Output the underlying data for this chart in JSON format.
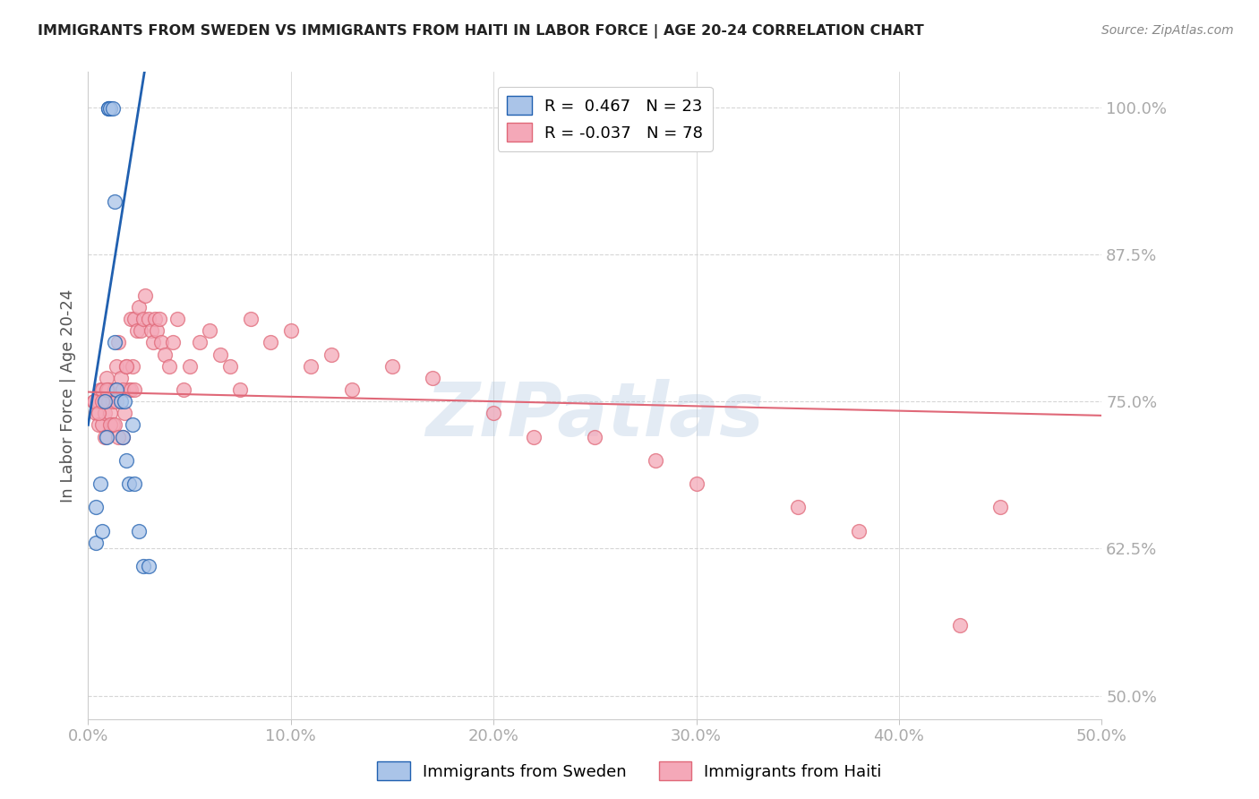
{
  "title": "IMMIGRANTS FROM SWEDEN VS IMMIGRANTS FROM HAITI IN LABOR FORCE | AGE 20-24 CORRELATION CHART",
  "source": "Source: ZipAtlas.com",
  "ylabel": "In Labor Force | Age 20-24",
  "xlim": [
    0.0,
    0.5
  ],
  "ylim": [
    0.48,
    1.03
  ],
  "yticks": [
    0.5,
    0.625,
    0.75,
    0.875,
    1.0
  ],
  "ytick_labels": [
    "50.0%",
    "62.5%",
    "75.0%",
    "87.5%",
    "100.0%"
  ],
  "xticks": [
    0.0,
    0.1,
    0.2,
    0.3,
    0.4,
    0.5
  ],
  "xtick_labels": [
    "0.0%",
    "10.0%",
    "20.0%",
    "30.0%",
    "40.0%",
    "50.0%"
  ],
  "sweden_R": 0.467,
  "sweden_N": 23,
  "haiti_R": -0.037,
  "haiti_N": 78,
  "sweden_color": "#aac4e8",
  "haiti_color": "#f4a8b8",
  "sweden_line_color": "#2060b0",
  "haiti_line_color": "#e06878",
  "watermark": "ZIPatlas",
  "sweden_x": [
    0.004,
    0.008,
    0.009,
    0.01,
    0.01,
    0.011,
    0.012,
    0.013,
    0.013,
    0.014,
    0.016,
    0.017,
    0.018,
    0.019,
    0.02,
    0.022,
    0.023,
    0.025,
    0.027,
    0.03,
    0.004,
    0.006,
    0.007
  ],
  "sweden_y": [
    0.63,
    0.75,
    0.72,
    0.999,
    0.999,
    0.999,
    0.999,
    0.92,
    0.8,
    0.76,
    0.75,
    0.72,
    0.75,
    0.7,
    0.68,
    0.73,
    0.68,
    0.64,
    0.61,
    0.61,
    0.66,
    0.68,
    0.64
  ],
  "haiti_x": [
    0.003,
    0.004,
    0.005,
    0.005,
    0.006,
    0.007,
    0.007,
    0.008,
    0.008,
    0.009,
    0.01,
    0.01,
    0.011,
    0.012,
    0.012,
    0.013,
    0.014,
    0.014,
    0.015,
    0.016,
    0.017,
    0.018,
    0.019,
    0.02,
    0.021,
    0.022,
    0.023,
    0.024,
    0.025,
    0.026,
    0.027,
    0.028,
    0.03,
    0.031,
    0.032,
    0.033,
    0.034,
    0.035,
    0.036,
    0.038,
    0.04,
    0.042,
    0.044,
    0.047,
    0.05,
    0.055,
    0.06,
    0.065,
    0.07,
    0.075,
    0.08,
    0.09,
    0.1,
    0.11,
    0.12,
    0.13,
    0.15,
    0.17,
    0.2,
    0.22,
    0.25,
    0.28,
    0.3,
    0.35,
    0.38,
    0.43,
    0.45,
    0.003,
    0.005,
    0.007,
    0.009,
    0.011,
    0.013,
    0.015,
    0.017,
    0.019,
    0.021,
    0.023
  ],
  "haiti_y": [
    0.75,
    0.74,
    0.73,
    0.75,
    0.76,
    0.76,
    0.73,
    0.72,
    0.74,
    0.77,
    0.75,
    0.76,
    0.74,
    0.75,
    0.73,
    0.76,
    0.75,
    0.78,
    0.8,
    0.77,
    0.72,
    0.74,
    0.78,
    0.76,
    0.82,
    0.78,
    0.82,
    0.81,
    0.83,
    0.81,
    0.82,
    0.84,
    0.82,
    0.81,
    0.8,
    0.82,
    0.81,
    0.82,
    0.8,
    0.79,
    0.78,
    0.8,
    0.82,
    0.76,
    0.78,
    0.8,
    0.81,
    0.79,
    0.78,
    0.76,
    0.82,
    0.8,
    0.81,
    0.78,
    0.79,
    0.76,
    0.78,
    0.77,
    0.74,
    0.72,
    0.72,
    0.7,
    0.68,
    0.66,
    0.64,
    0.56,
    0.66,
    0.75,
    0.74,
    0.75,
    0.76,
    0.73,
    0.73,
    0.72,
    0.76,
    0.78,
    0.76,
    0.76
  ]
}
